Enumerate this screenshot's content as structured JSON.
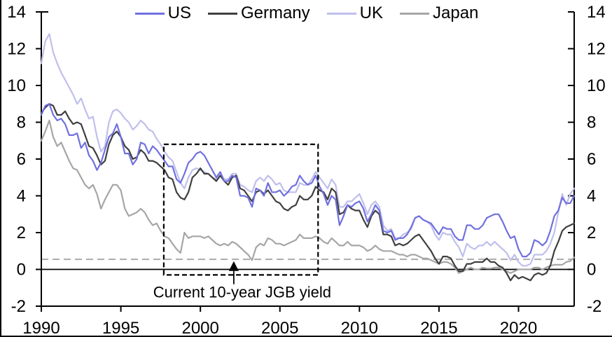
{
  "chart_data": {
    "type": "line",
    "title": "",
    "x_start": 1990,
    "x_step": 0.25,
    "x_range": [
      1990,
      2023.5
    ],
    "y_range": [
      -2,
      14
    ],
    "x_ticks": [
      1990,
      1995,
      2000,
      2005,
      2010,
      2015,
      2020
    ],
    "y_ticks": [
      -2,
      0,
      2,
      4,
      6,
      8,
      10,
      12,
      14
    ],
    "grid": false,
    "legend_position": "top",
    "axis_color": "#000000",
    "zero_line": 0,
    "series": [
      {
        "name": "US",
        "color": "#7070E0",
        "values": [
          8.4,
          8.9,
          9.0,
          8.4,
          8.1,
          8.2,
          7.9,
          7.3,
          7.3,
          7.4,
          6.6,
          6.9,
          6.2,
          5.9,
          5.4,
          5.8,
          6.5,
          7.2,
          7.4,
          7.9,
          7.2,
          6.3,
          6.3,
          5.7,
          6.0,
          6.9,
          6.8,
          6.3,
          6.7,
          6.5,
          6.2,
          5.9,
          5.6,
          5.6,
          4.9,
          4.7,
          5.2,
          5.8,
          6.0,
          6.3,
          6.4,
          6.2,
          5.8,
          5.4,
          5.0,
          5.3,
          4.8,
          4.8,
          5.1,
          5.0,
          4.0,
          4.0,
          3.9,
          3.4,
          4.4,
          4.3,
          4.0,
          4.7,
          4.2,
          4.2,
          4.3,
          4.0,
          4.2,
          4.5,
          4.6,
          5.1,
          4.8,
          4.6,
          4.7,
          5.1,
          4.5,
          4.1,
          3.5,
          4.0,
          3.8,
          2.4,
          2.9,
          3.5,
          3.4,
          3.6,
          3.7,
          3.3,
          2.6,
          3.0,
          3.5,
          3.2,
          2.1,
          2.0,
          2.1,
          1.6,
          1.7,
          1.7,
          1.9,
          2.3,
          2.8,
          2.9,
          2.7,
          2.6,
          2.5,
          2.2,
          1.9,
          2.3,
          2.2,
          2.2,
          1.8,
          1.6,
          1.6,
          2.4,
          2.4,
          2.2,
          2.2,
          2.4,
          2.8,
          2.9,
          3.0,
          3.0,
          2.6,
          2.1,
          1.7,
          1.8,
          1.1,
          0.7,
          0.7,
          0.9,
          1.6,
          1.5,
          1.3,
          1.5,
          2.1,
          2.9,
          3.2,
          3.9,
          3.6,
          3.6,
          4.0
        ]
      },
      {
        "name": "Germany",
        "color": "#3F3F3F",
        "values": [
          8.5,
          8.8,
          9.0,
          8.9,
          8.4,
          8.4,
          8.6,
          8.2,
          7.9,
          8.0,
          7.9,
          7.3,
          6.7,
          6.6,
          6.2,
          5.7,
          5.9,
          6.8,
          7.3,
          7.5,
          7.2,
          6.7,
          6.5,
          6.0,
          6.1,
          6.5,
          6.3,
          5.9,
          5.9,
          5.8,
          5.6,
          5.4,
          5.0,
          4.9,
          4.2,
          3.9,
          3.8,
          4.2,
          5.0,
          5.2,
          5.5,
          5.2,
          5.2,
          5.0,
          4.8,
          5.1,
          4.8,
          4.6,
          5.0,
          5.1,
          4.4,
          4.3,
          4.0,
          3.7,
          4.2,
          4.3,
          4.1,
          4.3,
          4.0,
          3.7,
          3.6,
          3.3,
          3.2,
          3.4,
          3.5,
          4.0,
          3.8,
          3.8,
          4.0,
          4.5,
          4.3,
          4.2,
          3.8,
          4.4,
          4.2,
          3.0,
          3.1,
          3.5,
          3.3,
          3.2,
          3.2,
          2.7,
          2.3,
          2.9,
          3.2,
          3.0,
          1.9,
          1.9,
          1.8,
          1.3,
          1.4,
          1.3,
          1.4,
          1.6,
          1.8,
          1.9,
          1.6,
          1.3,
          1.0,
          0.6,
          0.3,
          0.7,
          0.7,
          0.6,
          0.2,
          -0.1,
          -0.1,
          0.3,
          0.3,
          0.4,
          0.4,
          0.4,
          0.6,
          0.4,
          0.4,
          0.2,
          0.1,
          -0.2,
          -0.6,
          -0.3,
          -0.5,
          -0.4,
          -0.5,
          -0.6,
          -0.3,
          -0.2,
          -0.3,
          -0.2,
          0.2,
          1.0,
          1.5,
          2.1,
          2.3,
          2.4,
          2.5
        ]
      },
      {
        "name": "UK",
        "color": "#BFBFEC",
        "values": [
          11.2,
          12.4,
          12.8,
          11.8,
          11.2,
          10.7,
          10.3,
          9.9,
          9.5,
          9.0,
          9.3,
          8.7,
          8.2,
          8.3,
          7.2,
          6.4,
          6.7,
          8.0,
          8.6,
          8.7,
          8.5,
          8.2,
          8.0,
          7.6,
          7.8,
          8.1,
          7.9,
          7.6,
          7.5,
          7.1,
          6.8,
          6.4,
          6.1,
          5.9,
          5.3,
          4.7,
          4.4,
          5.0,
          5.4,
          5.5,
          5.4,
          5.3,
          5.2,
          5.0,
          4.9,
          5.2,
          4.9,
          4.9,
          5.2,
          5.2,
          4.6,
          4.5,
          4.3,
          4.2,
          4.8,
          5.0,
          4.8,
          5.1,
          4.9,
          4.6,
          4.7,
          4.3,
          4.2,
          4.2,
          4.2,
          4.7,
          4.6,
          4.6,
          4.9,
          5.3,
          5.0,
          4.7,
          4.4,
          4.9,
          4.6,
          3.4,
          3.4,
          3.7,
          3.7,
          3.9,
          4.1,
          3.6,
          3.0,
          3.5,
          3.7,
          3.4,
          2.4,
          2.1,
          2.2,
          1.7,
          1.7,
          1.9,
          2.0,
          2.2,
          2.8,
          2.9,
          2.7,
          2.6,
          2.4,
          1.9,
          1.6,
          2.0,
          1.9,
          1.9,
          1.5,
          1.2,
          0.7,
          1.4,
          1.2,
          1.1,
          1.3,
          1.3,
          1.5,
          1.3,
          1.5,
          1.3,
          1.1,
          0.9,
          0.5,
          0.8,
          0.4,
          0.2,
          0.2,
          0.3,
          0.8,
          0.8,
          0.8,
          1.0,
          1.4,
          2.0,
          3.1,
          4.1,
          3.5,
          4.1,
          4.4
        ]
      },
      {
        "name": "Japan",
        "color": "#A6A6A6",
        "values": [
          7.0,
          7.5,
          8.1,
          7.2,
          6.7,
          6.9,
          6.4,
          5.9,
          5.5,
          5.4,
          5.0,
          4.6,
          4.4,
          4.6,
          4.1,
          3.3,
          3.8,
          4.2,
          4.6,
          4.6,
          4.3,
          3.3,
          2.9,
          3.0,
          3.1,
          3.3,
          3.1,
          2.7,
          2.4,
          2.5,
          2.1,
          1.8,
          1.7,
          1.4,
          1.1,
          0.9,
          2.0,
          1.7,
          1.8,
          1.8,
          1.8,
          1.7,
          1.8,
          1.6,
          1.4,
          1.3,
          1.4,
          1.3,
          1.5,
          1.4,
          1.2,
          1.0,
          0.8,
          0.5,
          1.2,
          1.4,
          1.3,
          1.7,
          1.6,
          1.4,
          1.4,
          1.3,
          1.4,
          1.5,
          1.6,
          1.9,
          1.7,
          1.7,
          1.7,
          1.8,
          1.7,
          1.5,
          1.4,
          1.7,
          1.5,
          1.3,
          1.3,
          1.5,
          1.3,
          1.3,
          1.3,
          1.2,
          1.0,
          1.1,
          1.3,
          1.1,
          1.0,
          1.0,
          1.0,
          0.9,
          0.8,
          0.8,
          0.7,
          0.8,
          0.8,
          0.7,
          0.6,
          0.6,
          0.5,
          0.4,
          0.3,
          0.4,
          0.4,
          0.3,
          0.1,
          -0.2,
          -0.1,
          0.0,
          0.1,
          0.0,
          0.0,
          0.1,
          0.05,
          0.05,
          0.1,
          0.1,
          0.0,
          -0.1,
          -0.2,
          -0.1,
          0.0,
          0.0,
          0.0,
          0.0,
          0.1,
          0.1,
          0.0,
          0.1,
          0.2,
          0.25,
          0.25,
          0.25,
          0.4,
          0.45,
          0.65
        ]
      }
    ],
    "reference_line": {
      "value": 0.55,
      "color": "#ABABAB",
      "style": "dashed"
    },
    "highlight_box": {
      "x0": 1997.7,
      "x1": 2007.4,
      "y0": -0.3,
      "y1": 6.8,
      "color": "#000000",
      "style": "dashed"
    },
    "annotation": {
      "text": "Current 10-year JGB yield",
      "arrow_x": 2002.1,
      "arrow_tip_y": 0.45
    }
  }
}
